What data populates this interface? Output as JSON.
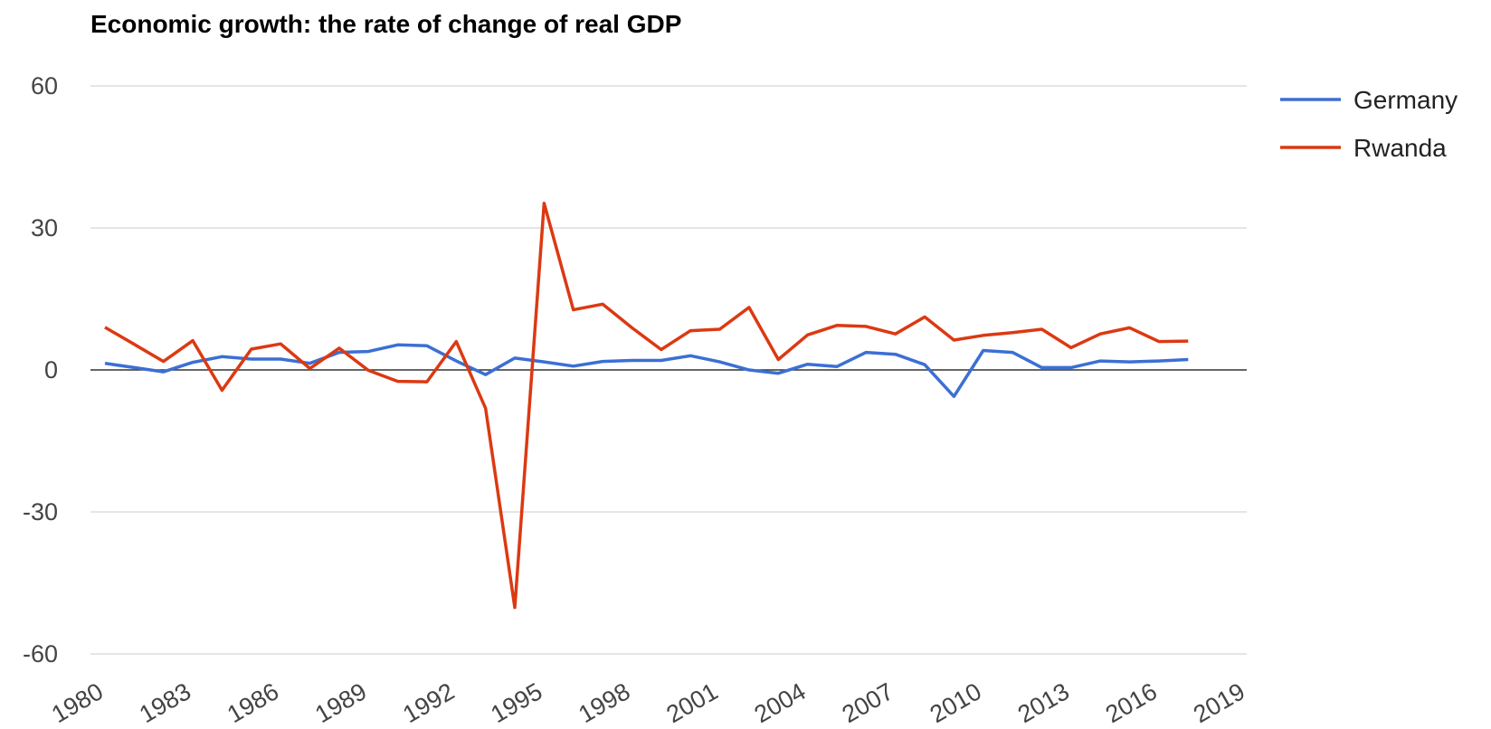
{
  "chart_data": {
    "type": "line",
    "title": "Economic growth: the rate of change of real GDP",
    "x": [
      1980,
      1981,
      1982,
      1983,
      1984,
      1985,
      1986,
      1987,
      1988,
      1989,
      1990,
      1991,
      1992,
      1993,
      1994,
      1995,
      1996,
      1997,
      1998,
      1999,
      2000,
      2001,
      2002,
      2003,
      2004,
      2005,
      2006,
      2007,
      2008,
      2009,
      2010,
      2011,
      2012,
      2013,
      2014,
      2015,
      2016,
      2017
    ],
    "series": [
      {
        "name": "Germany",
        "color": "#3c6fd4",
        "values": [
          1.4,
          0.5,
          -0.4,
          1.6,
          2.8,
          2.3,
          2.3,
          1.4,
          3.7,
          3.9,
          5.3,
          5.1,
          1.9,
          -1.0,
          2.5,
          1.7,
          0.8,
          1.8,
          2.0,
          2.0,
          3.0,
          1.7,
          0.0,
          -0.7,
          1.2,
          0.7,
          3.7,
          3.3,
          1.1,
          -5.6,
          4.1,
          3.7,
          0.5,
          0.5,
          1.9,
          1.7,
          1.9,
          2.2
        ]
      },
      {
        "name": "Rwanda",
        "color": "#dc3912",
        "values": [
          9.0,
          5.4,
          1.8,
          6.2,
          -4.3,
          4.4,
          5.5,
          0.3,
          4.6,
          -0.1,
          -2.4,
          -2.5,
          6.0,
          -8.1,
          -50.2,
          35.2,
          12.7,
          13.9,
          8.9,
          4.3,
          8.3,
          8.6,
          13.2,
          2.2,
          7.4,
          9.4,
          9.2,
          7.6,
          11.2,
          6.3,
          7.3,
          7.9,
          8.6,
          4.7,
          7.6,
          8.9,
          6.0,
          6.1
        ]
      }
    ],
    "xlim": [
      1980,
      2019
    ],
    "xticks": [
      1980,
      1983,
      1986,
      1989,
      1992,
      1995,
      1998,
      2001,
      2004,
      2007,
      2010,
      2013,
      2016,
      2019
    ],
    "ylim": [
      -60,
      60
    ],
    "yticks": [
      -60,
      -30,
      0,
      30,
      60
    ],
    "grid": true,
    "legend": "right"
  }
}
